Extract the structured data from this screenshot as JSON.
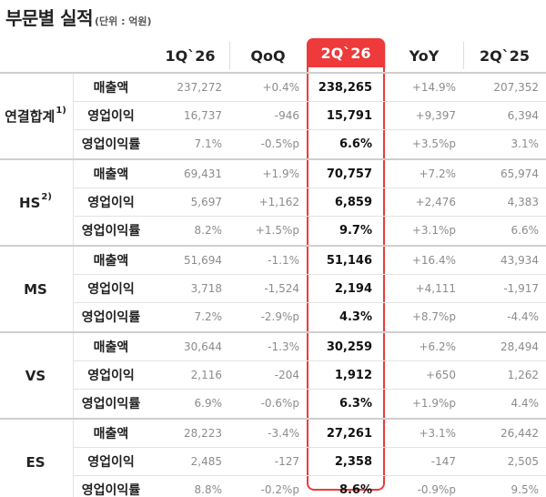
{
  "title": "부문별 실적",
  "unit": "(단위 : 억원)",
  "columns": [
    "1Q`26",
    "QoQ",
    "2Q`26",
    "YoY",
    "2Q`25"
  ],
  "accent_color": "#ee3a3a",
  "segments": [
    {
      "label": "연결합계",
      "note": "1)",
      "rows": [
        {
          "metric": "매출액",
          "values": [
            "237,272",
            "+0.4%",
            "238,265",
            "+14.9%",
            "207,352"
          ]
        },
        {
          "metric": "영업이익",
          "values": [
            "16,737",
            "-946",
            "15,791",
            "+9,397",
            "6,394"
          ]
        },
        {
          "metric": "영업이익률",
          "values": [
            "7.1%",
            "-0.5%p",
            "6.6%",
            "+3.5%p",
            "3.1%"
          ]
        }
      ]
    },
    {
      "label": "HS",
      "note": "2)",
      "rows": [
        {
          "metric": "매출액",
          "values": [
            "69,431",
            "+1.9%",
            "70,757",
            "+7.2%",
            "65,974"
          ]
        },
        {
          "metric": "영업이익",
          "values": [
            "5,697",
            "+1,162",
            "6,859",
            "+2,476",
            "4,383"
          ]
        },
        {
          "metric": "영업이익률",
          "values": [
            "8.2%",
            "+1.5%p",
            "9.7%",
            "+3.1%p",
            "6.6%"
          ]
        }
      ]
    },
    {
      "label": "MS",
      "note": "",
      "rows": [
        {
          "metric": "매출액",
          "values": [
            "51,694",
            "-1.1%",
            "51,146",
            "+16.4%",
            "43,934"
          ]
        },
        {
          "metric": "영업이익",
          "values": [
            "3,718",
            "-1,524",
            "2,194",
            "+4,111",
            "-1,917"
          ]
        },
        {
          "metric": "영업이익률",
          "values": [
            "7.2%",
            "-2.9%p",
            "4.3%",
            "+8.7%p",
            "-4.4%"
          ]
        }
      ]
    },
    {
      "label": "VS",
      "note": "",
      "rows": [
        {
          "metric": "매출액",
          "values": [
            "30,644",
            "-1.3%",
            "30,259",
            "+6.2%",
            "28,494"
          ]
        },
        {
          "metric": "영업이익",
          "values": [
            "2,116",
            "-204",
            "1,912",
            "+650",
            "1,262"
          ]
        },
        {
          "metric": "영업이익률",
          "values": [
            "6.9%",
            "-0.6%p",
            "6.3%",
            "+1.9%p",
            "4.4%"
          ]
        }
      ]
    },
    {
      "label": "ES",
      "note": "",
      "rows": [
        {
          "metric": "매출액",
          "values": [
            "28,223",
            "-3.4%",
            "27,261",
            "+3.1%",
            "26,442"
          ]
        },
        {
          "metric": "영업이익",
          "values": [
            "2,485",
            "-127",
            "2,358",
            "-147",
            "2,505"
          ]
        },
        {
          "metric": "영업이익률",
          "values": [
            "8.8%",
            "-0.2%p",
            "8.6%",
            "-0.9%p",
            "9.5%"
          ]
        }
      ]
    }
  ]
}
